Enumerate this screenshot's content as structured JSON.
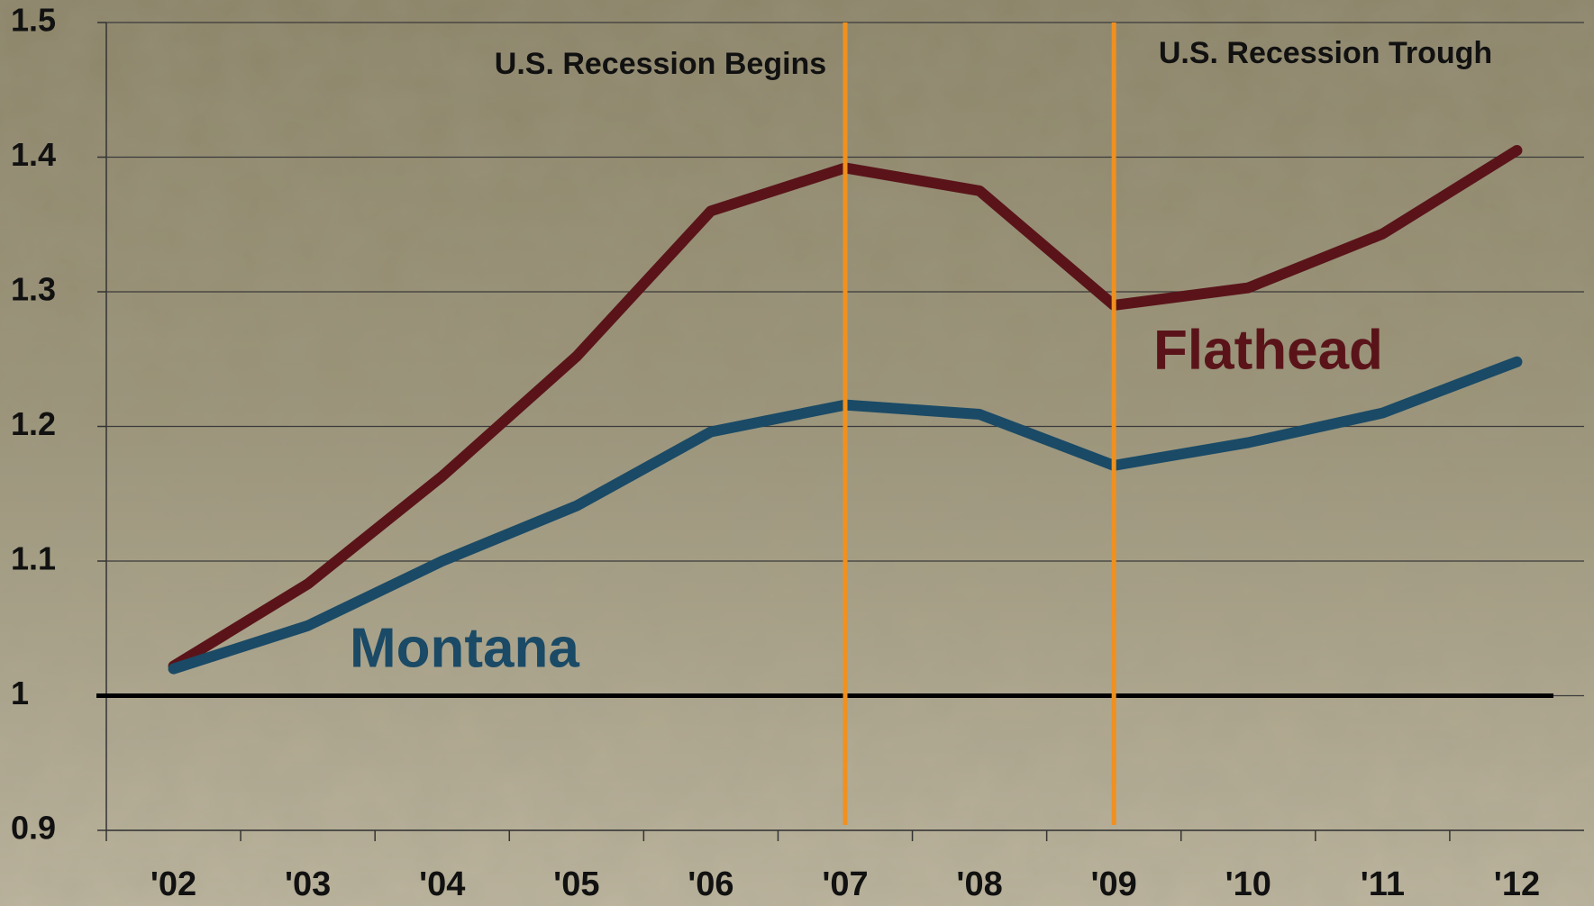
{
  "chart_data": {
    "type": "line",
    "categories": [
      "'02",
      "'03",
      "'04",
      "'05",
      "'06",
      "'07",
      "'08",
      "'09",
      "'10",
      "'11",
      "'12"
    ],
    "series": [
      {
        "name": "Flathead",
        "color": "#5a1419",
        "values": [
          1.022,
          1.083,
          1.163,
          1.252,
          1.36,
          1.392,
          1.375,
          1.29,
          1.303,
          1.343,
          1.405
        ]
      },
      {
        "name": "Montana",
        "color": "#1a4a66",
        "values": [
          1.02,
          1.052,
          1.1,
          1.141,
          1.196,
          1.216,
          1.209,
          1.171,
          1.188,
          1.21,
          1.248
        ]
      }
    ],
    "ylim": [
      0.9,
      1.5
    ],
    "yticks": [
      0.9,
      1,
      1.1,
      1.2,
      1.3,
      1.4,
      1.5
    ],
    "grid": true,
    "baseline": 1,
    "annotations": [
      {
        "text": "U.S. Recession Begins",
        "x": "'07",
        "color": "#f0901e"
      },
      {
        "text": "U.S. Recession Trough",
        "x": "'09",
        "color": "#f0901e"
      }
    ]
  }
}
